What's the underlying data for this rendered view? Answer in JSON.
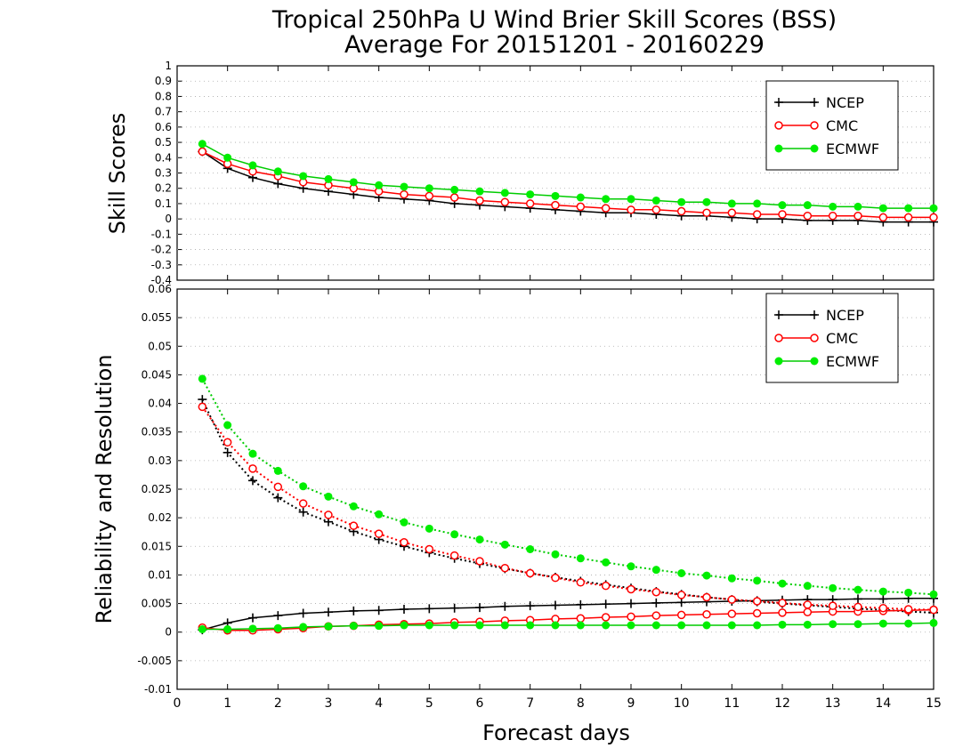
{
  "page": {
    "title_line1": "Tropical 250hPa U Wind Brier Skill Scores (BSS)",
    "title_line2": "Average For 20151201 - 20160229"
  },
  "chart_data": [
    {
      "type": "line",
      "ylabel": "Skill Scores",
      "xlabel": "Forecast days",
      "xlim": [
        0,
        15
      ],
      "ylim": [
        -0.4,
        1
      ],
      "xticks": [
        0,
        1,
        2,
        3,
        4,
        5,
        6,
        7,
        8,
        9,
        10,
        11,
        12,
        13,
        14,
        15
      ],
      "yticks": [
        -0.4,
        -0.3,
        -0.2,
        -0.1,
        0,
        0.1,
        0.2,
        0.3,
        0.4,
        0.5,
        0.6,
        0.7,
        0.8,
        0.9,
        1
      ],
      "grid": "horizontal dotted",
      "legend_position": "top-right",
      "x": [
        0.5,
        1,
        1.5,
        2,
        2.5,
        3,
        3.5,
        4,
        4.5,
        5,
        5.5,
        6,
        6.5,
        7,
        7.5,
        8,
        8.5,
        9,
        9.5,
        10,
        10.5,
        11,
        11.5,
        12,
        12.5,
        13,
        13.5,
        14,
        14.5,
        15
      ],
      "series": [
        {
          "name": "NCEP",
          "color": "#000000",
          "marker": "plus",
          "linestyle": "solid",
          "values": [
            0.44,
            0.33,
            0.27,
            0.23,
            0.2,
            0.18,
            0.16,
            0.14,
            0.13,
            0.12,
            0.1,
            0.09,
            0.08,
            0.07,
            0.06,
            0.05,
            0.04,
            0.04,
            0.03,
            0.02,
            0.02,
            0.01,
            0.0,
            0.0,
            -0.01,
            -0.01,
            -0.01,
            -0.02,
            -0.02,
            -0.02
          ]
        },
        {
          "name": "CMC",
          "color": "#ff0000",
          "marker": "open-circle",
          "linestyle": "solid",
          "values": [
            0.44,
            0.36,
            0.31,
            0.28,
            0.24,
            0.22,
            0.2,
            0.18,
            0.16,
            0.15,
            0.14,
            0.12,
            0.11,
            0.1,
            0.09,
            0.08,
            0.07,
            0.06,
            0.06,
            0.05,
            0.04,
            0.04,
            0.03,
            0.03,
            0.02,
            0.02,
            0.02,
            0.01,
            0.01,
            0.01
          ]
        },
        {
          "name": "ECMWF",
          "color": "#00cc00",
          "marker": "filled-circle",
          "linestyle": "solid",
          "values": [
            0.49,
            0.4,
            0.35,
            0.31,
            0.28,
            0.26,
            0.24,
            0.22,
            0.21,
            0.2,
            0.19,
            0.18,
            0.17,
            0.16,
            0.15,
            0.14,
            0.13,
            0.13,
            0.12,
            0.11,
            0.11,
            0.1,
            0.1,
            0.09,
            0.09,
            0.08,
            0.08,
            0.07,
            0.07,
            0.07
          ]
        }
      ]
    },
    {
      "type": "line",
      "ylabel": "Reliability and Resolution",
      "xlabel": "Forecast days",
      "xlim": [
        0,
        15
      ],
      "ylim": [
        -0.01,
        0.06
      ],
      "xticks": [
        0,
        1,
        2,
        3,
        4,
        5,
        6,
        7,
        8,
        9,
        10,
        11,
        12,
        13,
        14,
        15
      ],
      "yticks": [
        -0.01,
        -0.005,
        0,
        0.005,
        0.01,
        0.015,
        0.02,
        0.025,
        0.03,
        0.035,
        0.04,
        0.045,
        0.05,
        0.055,
        0.06
      ],
      "ytick_labels": [
        "-0.01",
        "-0.005",
        "0",
        "0.005",
        "0.01",
        "0.015",
        "0.02",
        "0.025",
        "0.03",
        "0.035",
        "0.04",
        "0.045",
        "0.05",
        "0.055",
        "0.06"
      ],
      "legend_position": "top-right",
      "x": [
        0.5,
        1,
        1.5,
        2,
        2.5,
        3,
        3.5,
        4,
        4.5,
        5,
        5.5,
        6,
        6.5,
        7,
        7.5,
        8,
        8.5,
        9,
        9.5,
        10,
        10.5,
        11,
        11.5,
        12,
        12.5,
        13,
        13.5,
        14,
        14.5,
        15
      ],
      "series": [
        {
          "name": "NCEP",
          "metric": "reliability",
          "color": "#000000",
          "marker": "plus",
          "linestyle": "solid",
          "values": [
            0.0004,
            0.0016,
            0.0025,
            0.0029,
            0.0033,
            0.0035,
            0.0037,
            0.0038,
            0.004,
            0.0041,
            0.0042,
            0.0043,
            0.0045,
            0.0046,
            0.0047,
            0.0048,
            0.0049,
            0.005,
            0.0051,
            0.0052,
            0.0053,
            0.0054,
            0.0055,
            0.0056,
            0.0057,
            0.0057,
            0.0058,
            0.0058,
            0.0059,
            0.0059
          ]
        },
        {
          "name": "NCEP",
          "metric": "resolution",
          "color": "#000000",
          "marker": "plus",
          "linestyle": "dotted",
          "values": [
            0.0407,
            0.0314,
            0.0265,
            0.0235,
            0.021,
            0.0193,
            0.0176,
            0.0162,
            0.015,
            0.0139,
            0.0129,
            0.012,
            0.0111,
            0.0103,
            0.0096,
            0.0089,
            0.0083,
            0.0077,
            0.0071,
            0.0066,
            0.0061,
            0.0057,
            0.0053,
            0.005,
            0.0047,
            0.0044,
            0.0041,
            0.0039,
            0.0036,
            0.0034
          ]
        },
        {
          "name": "CMC",
          "metric": "reliability",
          "color": "#ff0000",
          "marker": "open-circle",
          "linestyle": "solid",
          "values": [
            0.0008,
            0.0003,
            0.0003,
            0.0005,
            0.0007,
            0.001,
            0.0011,
            0.0013,
            0.0014,
            0.0015,
            0.0017,
            0.0018,
            0.002,
            0.0021,
            0.0023,
            0.0024,
            0.0026,
            0.0027,
            0.0029,
            0.003,
            0.0031,
            0.0032,
            0.0033,
            0.0034,
            0.0035,
            0.0036,
            0.0036,
            0.0037,
            0.0038,
            0.0039
          ]
        },
        {
          "name": "CMC",
          "metric": "resolution",
          "color": "#ff0000",
          "marker": "open-circle",
          "linestyle": "dotted",
          "values": [
            0.0394,
            0.0332,
            0.0286,
            0.0254,
            0.0225,
            0.0205,
            0.0186,
            0.0172,
            0.0157,
            0.0145,
            0.0134,
            0.0124,
            0.0112,
            0.0103,
            0.0095,
            0.0087,
            0.0081,
            0.0075,
            0.007,
            0.0065,
            0.0061,
            0.0057,
            0.0054,
            0.0051,
            0.0048,
            0.0046,
            0.0044,
            0.0042,
            0.004,
            0.0039
          ]
        },
        {
          "name": "ECMWF",
          "metric": "reliability",
          "color": "#00cc00",
          "marker": "filled-circle",
          "linestyle": "solid",
          "values": [
            0.0005,
            0.0005,
            0.0006,
            0.0007,
            0.0009,
            0.001,
            0.0011,
            0.0011,
            0.0012,
            0.0012,
            0.0012,
            0.0012,
            0.0012,
            0.0012,
            0.0012,
            0.0012,
            0.0012,
            0.0012,
            0.0012,
            0.0012,
            0.0012,
            0.0012,
            0.0012,
            0.0013,
            0.0013,
            0.0014,
            0.0014,
            0.0015,
            0.0015,
            0.0016
          ]
        },
        {
          "name": "ECMWF",
          "metric": "resolution",
          "color": "#00cc00",
          "marker": "filled-circle",
          "linestyle": "dotted",
          "values": [
            0.0443,
            0.0362,
            0.0312,
            0.0282,
            0.0255,
            0.0237,
            0.022,
            0.0206,
            0.0192,
            0.0181,
            0.0171,
            0.0162,
            0.0153,
            0.0145,
            0.0136,
            0.0129,
            0.0122,
            0.0115,
            0.0109,
            0.0103,
            0.0099,
            0.0094,
            0.009,
            0.0085,
            0.0081,
            0.0077,
            0.0074,
            0.0071,
            0.0069,
            0.0066
          ]
        }
      ]
    }
  ],
  "legend": {
    "ncep": "NCEP",
    "cmc": "CMC",
    "ecmwf": "ECMWF"
  }
}
